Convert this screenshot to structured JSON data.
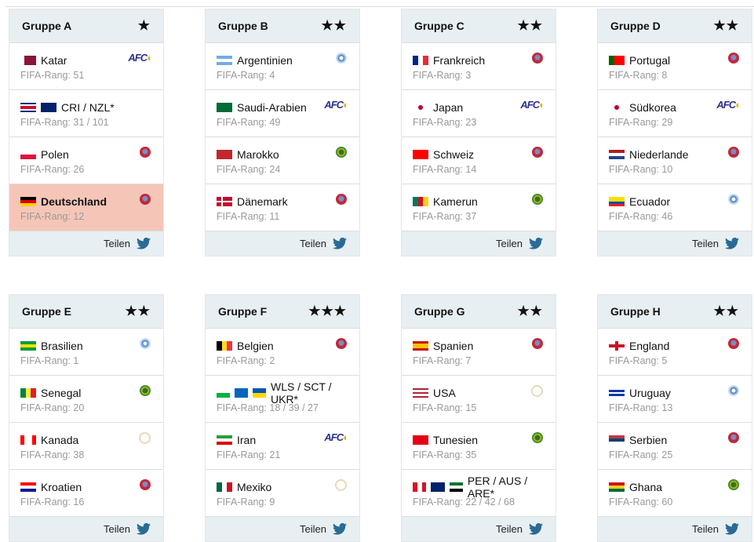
{
  "share_label": "Teilen",
  "rank_prefix": "FIFA-Rang: ",
  "groups": [
    {
      "name": "Gruppe A",
      "stars": "★",
      "teams": [
        {
          "name": "Katar",
          "rank": "51",
          "conf": "afc",
          "flags": [
            {
              "d": "v",
              "s": [
                "#fff",
                "#8a1538",
                "#8a1538",
                "#8a1538"
              ]
            }
          ]
        },
        {
          "name": "CRI / NZL*",
          "rank": "31 / 101",
          "conf": "",
          "flags": [
            {
              "d": "h",
              "s": [
                "#002b7f",
                "#fff",
                "#ce1126",
                "#ce1126",
                "#fff",
                "#002b7f"
              ]
            },
            {
              "d": "h",
              "s": [
                "#012169",
                "#012169"
              ]
            }
          ]
        },
        {
          "name": "Polen",
          "rank": "26",
          "conf": "uefa",
          "flags": [
            {
              "d": "h",
              "s": [
                "#fff",
                "#dc143c"
              ]
            }
          ]
        },
        {
          "name": "Deutschland",
          "rank": "12",
          "conf": "uefa",
          "highlight": true,
          "flags": [
            {
              "d": "h",
              "s": [
                "#000",
                "#dd0000",
                "#ffce00"
              ]
            }
          ]
        }
      ]
    },
    {
      "name": "Gruppe B",
      "stars": "★★",
      "teams": [
        {
          "name": "Argentinien",
          "rank": "4",
          "conf": "conmebol",
          "flags": [
            {
              "d": "h",
              "s": [
                "#74acdf",
                "#fff",
                "#74acdf"
              ]
            }
          ]
        },
        {
          "name": "Saudi-Arabien",
          "rank": "49",
          "conf": "afc",
          "flags": [
            {
              "d": "h",
              "s": [
                "#006c35"
              ]
            }
          ]
        },
        {
          "name": "Marokko",
          "rank": "24",
          "conf": "caf",
          "flags": [
            {
              "d": "h",
              "s": [
                "#c1272d"
              ]
            }
          ]
        },
        {
          "name": "Dänemark",
          "rank": "11",
          "conf": "uefa",
          "flags": [
            {
              "d": "h",
              "s": [
                "#c60c30"
              ],
              "x": "white"
            }
          ]
        }
      ]
    },
    {
      "name": "Gruppe C",
      "stars": "★★",
      "teams": [
        {
          "name": "Frankreich",
          "rank": "3",
          "conf": "uefa",
          "flags": [
            {
              "d": "v",
              "s": [
                "#002395",
                "#fff",
                "#ed2939"
              ]
            }
          ]
        },
        {
          "name": "Japan",
          "rank": "23",
          "conf": "afc",
          "flags": [
            {
              "d": "h",
              "s": [
                "#fff"
              ],
              "dot": true
            }
          ]
        },
        {
          "name": "Schweiz",
          "rank": "14",
          "conf": "uefa",
          "flags": [
            {
              "d": "h",
              "s": [
                "#ff0000"
              ]
            }
          ]
        },
        {
          "name": "Kamerun",
          "rank": "37",
          "conf": "caf",
          "flags": [
            {
              "d": "v",
              "s": [
                "#007a5e",
                "#ce1126",
                "#fcd116"
              ]
            }
          ]
        }
      ]
    },
    {
      "name": "Gruppe D",
      "stars": "★★",
      "teams": [
        {
          "name": "Portugal",
          "rank": "8",
          "conf": "uefa",
          "flags": [
            {
              "d": "v",
              "s": [
                "#006600",
                "#ff0000",
                "#ff0000"
              ]
            }
          ]
        },
        {
          "name": "Südkorea",
          "rank": "29",
          "conf": "afc",
          "flags": [
            {
              "d": "h",
              "s": [
                "#fff"
              ],
              "dot": true
            }
          ]
        },
        {
          "name": "Niederlande",
          "rank": "10",
          "conf": "uefa",
          "flags": [
            {
              "d": "h",
              "s": [
                "#ae1c28",
                "#fff",
                "#21468b"
              ]
            }
          ]
        },
        {
          "name": "Ecuador",
          "rank": "46",
          "conf": "conmebol",
          "flags": [
            {
              "d": "h",
              "s": [
                "#ffdd00",
                "#ffdd00",
                "#034ea2",
                "#ed1c24"
              ]
            }
          ]
        }
      ]
    },
    {
      "name": "Gruppe E",
      "stars": "★★",
      "teams": [
        {
          "name": "Brasilien",
          "rank": "1",
          "conf": "conmebol",
          "flags": [
            {
              "d": "h",
              "s": [
                "#009c3b",
                "#ffdf00",
                "#009c3b"
              ]
            }
          ]
        },
        {
          "name": "Senegal",
          "rank": "20",
          "conf": "caf",
          "flags": [
            {
              "d": "v",
              "s": [
                "#00853f",
                "#fdef42",
                "#e31b23"
              ]
            }
          ]
        },
        {
          "name": "Kanada",
          "rank": "38",
          "conf": "concacaf",
          "flags": [
            {
              "d": "v",
              "s": [
                "#ff0000",
                "#fff",
                "#fff",
                "#ff0000"
              ]
            }
          ]
        },
        {
          "name": "Kroatien",
          "rank": "16",
          "conf": "uefa",
          "flags": [
            {
              "d": "h",
              "s": [
                "#ff0000",
                "#fff",
                "#171796"
              ]
            }
          ]
        }
      ]
    },
    {
      "name": "Gruppe F",
      "stars": "★★★",
      "teams": [
        {
          "name": "Belgien",
          "rank": "2",
          "conf": "uefa",
          "flags": [
            {
              "d": "v",
              "s": [
                "#000",
                "#fdda24",
                "#ef3340"
              ]
            }
          ]
        },
        {
          "name": "WLS / SCT / UKR*",
          "rank": "18 / 39 / 27",
          "conf": "",
          "flags": [
            {
              "d": "h",
              "s": [
                "#fff",
                "#00b140"
              ]
            },
            {
              "d": "h",
              "s": [
                "#0065bd"
              ]
            },
            {
              "d": "h",
              "s": [
                "#0057b7",
                "#ffd700"
              ]
            }
          ]
        },
        {
          "name": "Iran",
          "rank": "21",
          "conf": "afc",
          "flags": [
            {
              "d": "h",
              "s": [
                "#239f40",
                "#fff",
                "#da0000"
              ]
            }
          ]
        },
        {
          "name": "Mexiko",
          "rank": "9",
          "conf": "concacaf",
          "flags": [
            {
              "d": "v",
              "s": [
                "#006847",
                "#fff",
                "#ce1126"
              ]
            }
          ]
        }
      ]
    },
    {
      "name": "Gruppe G",
      "stars": "★★",
      "teams": [
        {
          "name": "Spanien",
          "rank": "7",
          "conf": "uefa",
          "flags": [
            {
              "d": "h",
              "s": [
                "#c60b1e",
                "#ffc400",
                "#ffc400",
                "#c60b1e"
              ]
            }
          ]
        },
        {
          "name": "USA",
          "rank": "15",
          "conf": "concacaf",
          "flags": [
            {
              "d": "h",
              "s": [
                "#b22234",
                "#fff",
                "#b22234",
                "#fff",
                "#b22234"
              ]
            }
          ]
        },
        {
          "name": "Tunesien",
          "rank": "35",
          "conf": "caf",
          "flags": [
            {
              "d": "h",
              "s": [
                "#e70013"
              ]
            }
          ]
        },
        {
          "name": "PER / AUS / ARE*",
          "rank": "22 / 42 / 68",
          "conf": "",
          "flags": [
            {
              "d": "v",
              "s": [
                "#d91023",
                "#fff",
                "#d91023"
              ]
            },
            {
              "d": "h",
              "s": [
                "#012169"
              ]
            },
            {
              "d": "h",
              "s": [
                "#00732f",
                "#fff",
                "#000"
              ]
            }
          ]
        }
      ]
    },
    {
      "name": "Gruppe H",
      "stars": "★★",
      "teams": [
        {
          "name": "England",
          "rank": "5",
          "conf": "uefa",
          "flags": [
            {
              "d": "h",
              "s": [
                "#fff"
              ],
              "x": "red"
            }
          ]
        },
        {
          "name": "Uruguay",
          "rank": "13",
          "conf": "conmebol",
          "flags": [
            {
              "d": "h",
              "s": [
                "#fff",
                "#0038a8",
                "#fff",
                "#0038a8",
                "#fff"
              ]
            }
          ]
        },
        {
          "name": "Serbien",
          "rank": "25",
          "conf": "uefa",
          "flags": [
            {
              "d": "h",
              "s": [
                "#c6363c",
                "#0c4076",
                "#fff"
              ]
            }
          ]
        },
        {
          "name": "Ghana",
          "rank": "60",
          "conf": "caf",
          "flags": [
            {
              "d": "h",
              "s": [
                "#ce1126",
                "#fcd116",
                "#006b3f"
              ]
            }
          ]
        }
      ]
    }
  ]
}
